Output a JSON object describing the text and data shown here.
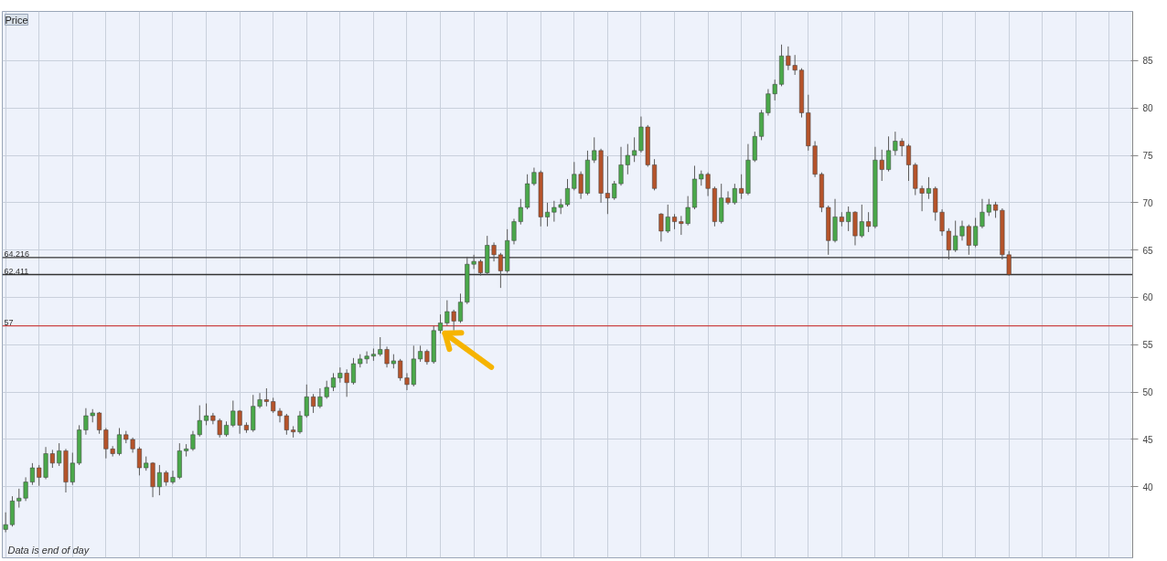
{
  "chart_data": {
    "type": "candlestick",
    "title": "Price",
    "annotations": [
      "Data is end of day"
    ],
    "categories": [
      null,
      null,
      null,
      null,
      null,
      null,
      null,
      null,
      null,
      null,
      null,
      null,
      null,
      null,
      null,
      null,
      null,
      null,
      null,
      null,
      null,
      null,
      null,
      null,
      null,
      null,
      null,
      null,
      null,
      null,
      null,
      null,
      null,
      null,
      null,
      null,
      null,
      null,
      null,
      null,
      null,
      null,
      null,
      null,
      null,
      null,
      null,
      null,
      null,
      null,
      null,
      null,
      null,
      null,
      null,
      null,
      null,
      null,
      null,
      null,
      null,
      null,
      null,
      null,
      null,
      null,
      null,
      null,
      null,
      null,
      null,
      null,
      null,
      null,
      null,
      null,
      null,
      null,
      null,
      null,
      null,
      null,
      null,
      null,
      null,
      null,
      null,
      null,
      null,
      null,
      null,
      null,
      null,
      null,
      null,
      null,
      null,
      null,
      null,
      null,
      null,
      null,
      null,
      null,
      null,
      null,
      null,
      null,
      null,
      null,
      null,
      null,
      null,
      null,
      null,
      null,
      null,
      null,
      null,
      null,
      null,
      null,
      null,
      null,
      null,
      null,
      null,
      null,
      null,
      null,
      null,
      null,
      null,
      null,
      null,
      null,
      null,
      null,
      null,
      null,
      null,
      null,
      null,
      null,
      null,
      null,
      null,
      null,
      null,
      null,
      null,
      null,
      null,
      null,
      null,
      null,
      null,
      null,
      null,
      null,
      null,
      null,
      null,
      null,
      null,
      null,
      null,
      null,
      null
    ],
    "ohlc": [
      [
        35.5,
        37.3,
        35.2,
        36.0
      ],
      [
        36.0,
        39.0,
        35.8,
        38.5
      ],
      [
        38.5,
        39.8,
        37.8,
        38.8
      ],
      [
        38.8,
        41.0,
        38.5,
        40.5
      ],
      [
        40.5,
        42.5,
        40.2,
        42.0
      ],
      [
        42.0,
        42.3,
        40.1,
        41.0
      ],
      [
        41.0,
        44.2,
        40.8,
        43.5
      ],
      [
        43.5,
        43.9,
        42.0,
        42.5
      ],
      [
        42.5,
        44.6,
        42.2,
        43.8
      ],
      [
        43.8,
        44.0,
        39.4,
        40.5
      ],
      [
        40.5,
        43.6,
        40.2,
        42.5
      ],
      [
        42.5,
        46.5,
        42.3,
        46.0
      ],
      [
        46.0,
        48.3,
        45.5,
        47.5
      ],
      [
        47.5,
        48.2,
        46.8,
        47.8
      ],
      [
        47.8,
        47.9,
        45.6,
        46.0
      ],
      [
        46.0,
        46.2,
        43.0,
        44.0
      ],
      [
        44.0,
        44.3,
        43.2,
        43.5
      ],
      [
        43.5,
        46.2,
        43.3,
        45.5
      ],
      [
        45.5,
        45.9,
        44.6,
        45.0
      ],
      [
        45.0,
        45.2,
        43.6,
        44.0
      ],
      [
        44.0,
        44.2,
        41.2,
        42.0
      ],
      [
        42.0,
        43.2,
        41.7,
        42.5
      ],
      [
        42.5,
        42.6,
        38.9,
        40.0
      ],
      [
        40.0,
        42.3,
        39.1,
        41.5
      ],
      [
        41.5,
        41.7,
        40.1,
        40.5
      ],
      [
        40.5,
        41.7,
        40.3,
        41.0
      ],
      [
        41.0,
        44.6,
        40.8,
        43.8
      ],
      [
        43.8,
        44.5,
        43.2,
        44.0
      ],
      [
        44.0,
        45.9,
        43.8,
        45.5
      ],
      [
        45.5,
        48.6,
        45.3,
        47.0
      ],
      [
        47.0,
        48.8,
        46.5,
        47.5
      ],
      [
        47.5,
        47.8,
        46.6,
        47.0
      ],
      [
        47.0,
        47.2,
        45.2,
        45.5
      ],
      [
        45.5,
        46.9,
        45.3,
        46.5
      ],
      [
        46.5,
        49.1,
        46.3,
        48.0
      ],
      [
        48.0,
        48.1,
        45.6,
        46.5
      ],
      [
        46.5,
        46.8,
        45.7,
        46.0
      ],
      [
        46.0,
        49.7,
        45.8,
        48.5
      ],
      [
        48.5,
        49.9,
        48.3,
        49.2
      ],
      [
        49.2,
        50.4,
        48.5,
        49.0
      ],
      [
        49.0,
        49.4,
        47.8,
        48.0
      ],
      [
        48.0,
        48.3,
        46.8,
        47.5
      ],
      [
        47.5,
        47.7,
        45.5,
        46.0
      ],
      [
        46.0,
        46.4,
        45.2,
        45.8
      ],
      [
        45.8,
        48.0,
        45.6,
        47.5
      ],
      [
        47.5,
        50.8,
        47.3,
        49.5
      ],
      [
        49.5,
        49.8,
        47.8,
        48.5
      ],
      [
        48.5,
        50.4,
        48.3,
        49.5
      ],
      [
        49.5,
        51.2,
        49.3,
        50.5
      ],
      [
        50.5,
        52.0,
        50.1,
        51.5
      ],
      [
        51.5,
        52.6,
        51.0,
        52.0
      ],
      [
        52.0,
        52.4,
        49.5,
        51.0
      ],
      [
        51.0,
        53.6,
        50.8,
        53.0
      ],
      [
        53.0,
        54.0,
        52.6,
        53.5
      ],
      [
        53.5,
        54.3,
        53.0,
        53.8
      ],
      [
        53.8,
        54.6,
        53.3,
        54.0
      ],
      [
        54.0,
        55.8,
        53.8,
        54.5
      ],
      [
        54.5,
        54.8,
        52.6,
        53.0
      ],
      [
        53.0,
        54.0,
        52.5,
        53.3
      ],
      [
        53.3,
        53.5,
        51.2,
        51.5
      ],
      [
        51.5,
        52.0,
        50.2,
        50.8
      ],
      [
        50.8,
        54.9,
        50.6,
        53.5
      ],
      [
        53.5,
        54.9,
        53.2,
        54.3
      ],
      [
        54.3,
        54.5,
        52.9,
        53.2
      ],
      [
        53.2,
        57.0,
        53.0,
        56.5
      ],
      [
        56.5,
        58.2,
        56.2,
        57.3
      ],
      [
        57.3,
        59.7,
        57.0,
        58.5
      ],
      [
        58.5,
        58.7,
        56.5,
        57.5
      ],
      [
        57.5,
        60.4,
        57.3,
        59.5
      ],
      [
        59.5,
        64.3,
        59.3,
        63.5
      ],
      [
        63.5,
        64.5,
        63.0,
        63.8
      ],
      [
        63.8,
        64.0,
        62.3,
        62.6
      ],
      [
        62.6,
        66.5,
        62.4,
        65.5
      ],
      [
        65.5,
        65.8,
        63.8,
        64.5
      ],
      [
        64.5,
        64.7,
        61.0,
        62.8
      ],
      [
        62.8,
        67.2,
        62.6,
        66.0
      ],
      [
        66.0,
        68.3,
        65.6,
        68.0
      ],
      [
        68.0,
        70.4,
        67.7,
        69.5
      ],
      [
        69.5,
        73.0,
        69.3,
        72.0
      ],
      [
        72.0,
        73.7,
        71.8,
        73.2
      ],
      [
        73.2,
        73.4,
        67.5,
        68.5
      ],
      [
        68.5,
        70.0,
        67.5,
        69.0
      ],
      [
        69.0,
        70.2,
        68.0,
        69.5
      ],
      [
        69.5,
        70.4,
        68.8,
        69.8
      ],
      [
        69.8,
        72.5,
        69.6,
        71.5
      ],
      [
        71.5,
        74.3,
        71.3,
        73.0
      ],
      [
        73.0,
        73.3,
        70.4,
        71.0
      ],
      [
        71.0,
        75.5,
        70.8,
        74.5
      ],
      [
        74.5,
        76.9,
        74.2,
        75.5
      ],
      [
        75.5,
        75.7,
        70.0,
        71.0
      ],
      [
        71.0,
        74.9,
        68.8,
        70.5
      ],
      [
        70.5,
        72.3,
        70.3,
        72.0
      ],
      [
        72.0,
        75.9,
        71.8,
        74.0
      ],
      [
        74.0,
        76.2,
        73.0,
        75.0
      ],
      [
        75.0,
        76.9,
        74.3,
        75.5
      ],
      [
        75.5,
        79.1,
        75.3,
        78.0
      ],
      [
        78.0,
        78.2,
        73.8,
        74.0
      ],
      [
        74.0,
        74.6,
        71.3,
        71.5
      ],
      [
        68.8,
        68.9,
        65.9,
        67.0
      ],
      [
        67.0,
        69.8,
        66.8,
        68.5
      ],
      [
        68.5,
        68.8,
        67.2,
        68.0
      ],
      [
        68.0,
        68.6,
        66.6,
        67.8
      ],
      [
        67.8,
        70.7,
        67.6,
        69.5
      ],
      [
        69.5,
        73.9,
        69.3,
        72.5
      ],
      [
        72.5,
        73.4,
        71.8,
        73.0
      ],
      [
        73.0,
        73.2,
        70.7,
        71.5
      ],
      [
        71.5,
        71.7,
        67.5,
        68.0
      ],
      [
        68.0,
        72.0,
        67.8,
        70.5
      ],
      [
        70.5,
        71.2,
        69.8,
        70.0
      ],
      [
        70.0,
        72.0,
        69.8,
        71.5
      ],
      [
        71.5,
        73.0,
        70.4,
        71.0
      ],
      [
        71.0,
        76.2,
        70.8,
        74.5
      ],
      [
        74.5,
        77.5,
        74.3,
        77.0
      ],
      [
        77.0,
        79.8,
        76.6,
        79.5
      ],
      [
        79.5,
        82.0,
        79.2,
        81.5
      ],
      [
        81.5,
        83.0,
        80.8,
        82.5
      ],
      [
        82.5,
        86.7,
        82.3,
        85.5
      ],
      [
        85.5,
        86.5,
        84.0,
        84.5
      ],
      [
        84.5,
        85.6,
        83.5,
        84.0
      ],
      [
        84.0,
        84.2,
        79.0,
        79.5
      ],
      [
        79.5,
        81.4,
        75.5,
        76.0
      ],
      [
        76.0,
        76.5,
        72.7,
        73.0
      ],
      [
        73.0,
        73.2,
        69.0,
        69.5
      ],
      [
        69.5,
        69.7,
        64.5,
        66.0
      ],
      [
        66.0,
        70.4,
        65.8,
        68.5
      ],
      [
        68.5,
        69.0,
        67.5,
        68.0
      ],
      [
        68.0,
        69.6,
        67.0,
        69.0
      ],
      [
        69.0,
        69.1,
        65.5,
        66.5
      ],
      [
        66.5,
        69.8,
        66.3,
        68.0
      ],
      [
        68.0,
        69.0,
        66.9,
        67.5
      ],
      [
        67.5,
        75.9,
        67.3,
        74.5
      ],
      [
        74.5,
        75.6,
        72.3,
        73.5
      ],
      [
        73.5,
        77.0,
        73.3,
        75.5
      ],
      [
        75.5,
        77.5,
        75.0,
        76.5
      ],
      [
        76.5,
        76.8,
        74.9,
        76.0
      ],
      [
        76.0,
        76.2,
        72.3,
        74.0
      ],
      [
        74.0,
        74.2,
        70.8,
        71.5
      ],
      [
        71.5,
        71.8,
        69.1,
        71.0
      ],
      [
        71.0,
        72.7,
        70.4,
        71.5
      ],
      [
        71.5,
        71.7,
        68.1,
        69.0
      ],
      [
        69.0,
        69.3,
        66.5,
        67.0
      ],
      [
        67.0,
        67.3,
        64.0,
        65.0
      ],
      [
        65.0,
        68.1,
        64.8,
        66.5
      ],
      [
        66.5,
        68.1,
        66.0,
        67.5
      ],
      [
        67.5,
        67.7,
        64.5,
        65.5
      ],
      [
        65.5,
        68.4,
        65.3,
        67.5
      ],
      [
        67.5,
        70.4,
        67.3,
        69.0
      ],
      [
        69.0,
        70.4,
        68.6,
        69.8
      ],
      [
        69.8,
        70.1,
        68.4,
        69.2
      ],
      [
        69.2,
        69.4,
        64.0,
        64.5
      ],
      [
        64.5,
        64.9,
        62.3,
        62.4
      ],
      null,
      null,
      null,
      null,
      null,
      null,
      null,
      null,
      null,
      null,
      null,
      null,
      null,
      null,
      null,
      null,
      null,
      null
    ],
    "colors": [
      "#4aa84a",
      "#4aa84a",
      "#4aa84a",
      "#4aa84a",
      "#4aa84a",
      "#b5532a",
      "#4aa84a",
      "#b5532a",
      "#4aa84a",
      "#b5532a",
      "#4aa84a",
      "#4aa84a",
      "#4aa84a",
      "#4aa84a",
      "#b5532a",
      "#b5532a",
      "#b5532a",
      "#4aa84a",
      "#b5532a",
      "#b5532a",
      "#b5532a",
      "#4aa84a",
      "#b5532a",
      "#4aa84a",
      "#b5532a",
      "#4aa84a",
      "#4aa84a",
      "#4aa84a",
      "#4aa84a",
      "#4aa84a",
      "#4aa84a",
      "#b5532a",
      "#b5532a",
      "#4aa84a",
      "#4aa84a",
      "#b5532a",
      "#b5532a",
      "#4aa84a",
      "#4aa84a",
      "#b5532a",
      "#b5532a",
      "#b5532a",
      "#b5532a",
      "#b5532a",
      "#4aa84a",
      "#4aa84a",
      "#b5532a",
      "#4aa84a",
      "#4aa84a",
      "#4aa84a",
      "#4aa84a",
      "#b5532a",
      "#4aa84a",
      "#4aa84a",
      "#4aa84a",
      "#4aa84a",
      "#4aa84a",
      "#b5532a",
      "#4aa84a",
      "#b5532a",
      "#b5532a",
      "#4aa84a",
      "#4aa84a",
      "#b5532a",
      "#4aa84a",
      "#4aa84a",
      "#4aa84a",
      "#b5532a",
      "#4aa84a",
      "#4aa84a",
      "#4aa84a",
      "#b5532a",
      "#4aa84a",
      "#b5532a",
      "#b5532a",
      "#4aa84a",
      "#4aa84a",
      "#4aa84a",
      "#4aa84a",
      "#4aa84a",
      "#b5532a",
      "#4aa84a",
      "#4aa84a",
      "#4aa84a",
      "#4aa84a",
      "#4aa84a",
      "#b5532a",
      "#4aa84a",
      "#4aa84a",
      "#b5532a",
      "#b5532a",
      "#4aa84a",
      "#4aa84a",
      "#4aa84a",
      "#4aa84a",
      "#4aa84a",
      "#b5532a",
      "#b5532a",
      "#b5532a",
      "#4aa84a",
      "#b5532a",
      "#b5532a",
      "#4aa84a",
      "#4aa84a",
      "#4aa84a",
      "#b5532a",
      "#b5532a",
      "#4aa84a",
      "#b5532a",
      "#4aa84a",
      "#b5532a",
      "#4aa84a",
      "#4aa84a",
      "#4aa84a",
      "#4aa84a",
      "#4aa84a",
      "#4aa84a",
      "#b5532a",
      "#b5532a",
      "#b5532a",
      "#b5532a",
      "#b5532a",
      "#b5532a",
      "#b5532a",
      "#4aa84a",
      "#b5532a",
      "#4aa84a",
      "#b5532a",
      "#4aa84a",
      "#b5532a",
      "#4aa84a",
      "#b5532a",
      "#4aa84a",
      "#4aa84a",
      "#b5532a",
      "#b5532a",
      "#b5532a",
      "#b5532a",
      "#4aa84a",
      "#b5532a",
      "#b5532a",
      "#b5532a",
      "#4aa84a",
      "#4aa84a",
      "#b5532a",
      "#4aa84a",
      "#4aa84a",
      "#4aa84a",
      "#b5532a",
      "#b5532a",
      "#b5532a",
      null,
      null,
      null,
      null,
      null,
      null,
      null,
      null,
      null,
      null,
      null,
      null,
      null,
      null,
      null,
      null,
      null,
      null
    ],
    "ylim": [
      32.5,
      90.2
    ],
    "yticks": [
      40,
      45,
      50,
      55,
      60,
      65,
      70,
      75,
      80,
      85
    ],
    "ref_lines": [
      {
        "axis": "y",
        "value": 64.216,
        "label": "64.216",
        "color": "#333333"
      },
      {
        "axis": "y",
        "value": 62.411,
        "label": "62.411",
        "color": "#333333"
      },
      {
        "axis": "y",
        "value": 57,
        "label": "57",
        "color": "#cc4444"
      }
    ],
    "grid": true,
    "tick_labels": "y"
  }
}
